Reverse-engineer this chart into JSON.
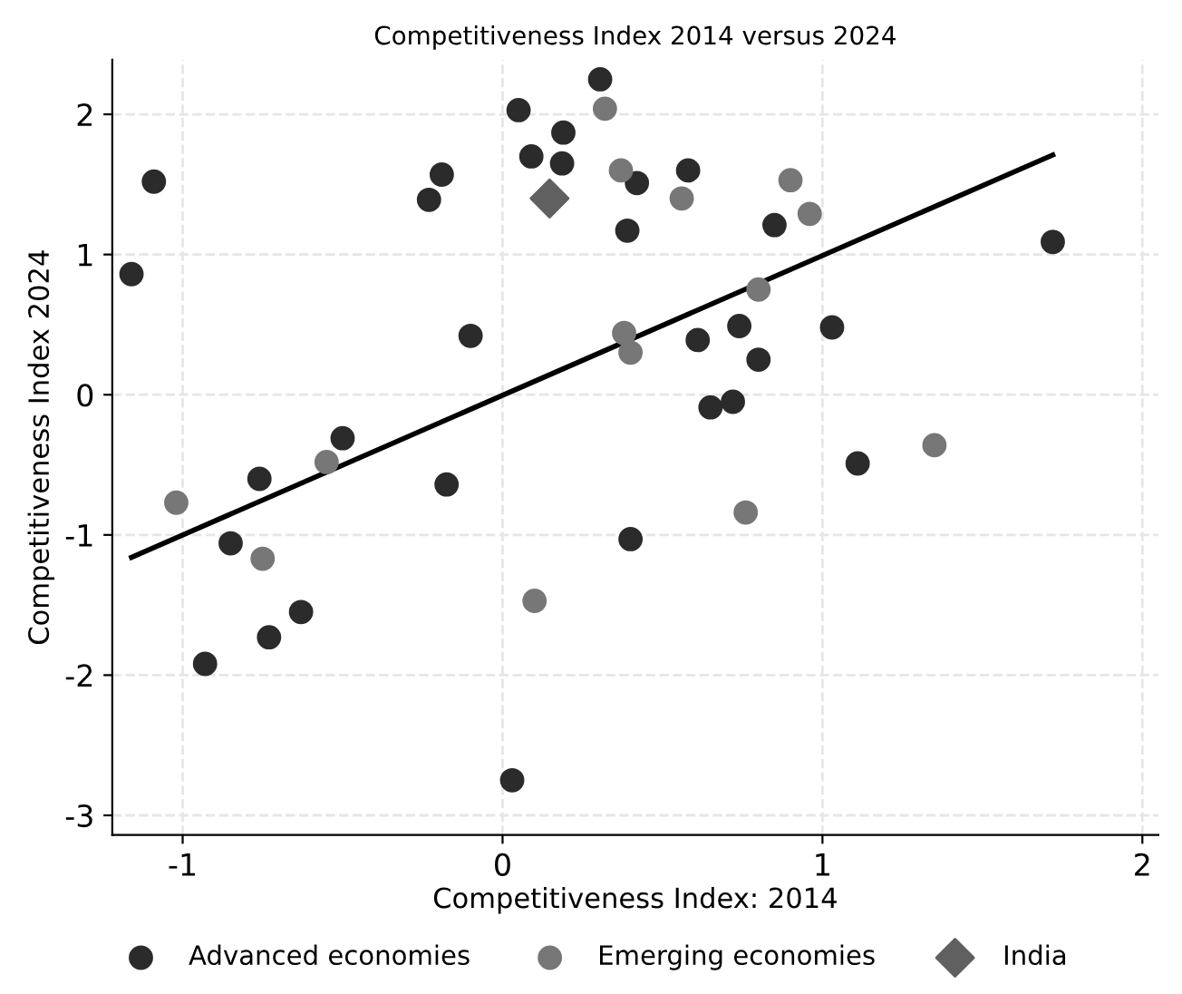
{
  "chart_data": {
    "type": "scatter",
    "title": "Competitiveness Index 2014 versus 2024",
    "xlabel": "Competitiveness Index: 2014",
    "ylabel": "Competitiveness Index 2024",
    "xlim": [
      -1.22,
      2.05
    ],
    "ylim": [
      -3.14,
      2.39
    ],
    "xticks": [
      -1,
      0,
      1,
      2
    ],
    "yticks": [
      -3,
      -2,
      -1,
      0,
      1,
      2
    ],
    "grid": true,
    "legend": "bottom",
    "series": [
      {
        "name": "Advanced economies",
        "color": "#2b2b2b",
        "marker": "circle",
        "x": [
          -1.16,
          -1.09,
          -0.23,
          -0.19,
          -0.1,
          0.05,
          0.09,
          0.305,
          0.19,
          0.186,
          0.42,
          0.58,
          0.39,
          0.85,
          1.72,
          0.61,
          0.74,
          1.03,
          0.8,
          0.65,
          0.72,
          0.4,
          1.11,
          -0.5,
          -0.76,
          -0.175,
          -0.85,
          -0.63,
          -0.73,
          -0.93,
          0.03
        ],
        "values": [
          0.86,
          1.52,
          1.39,
          1.57,
          0.42,
          2.03,
          1.7,
          2.25,
          1.87,
          1.65,
          1.51,
          1.6,
          1.17,
          1.21,
          1.09,
          0.39,
          0.49,
          0.48,
          0.25,
          -0.09,
          -0.05,
          -1.03,
          -0.49,
          -0.31,
          -0.6,
          -0.64,
          -1.06,
          -1.55,
          -1.73,
          -1.92,
          -2.75
        ]
      },
      {
        "name": "Emerging economies",
        "color": "#777777",
        "marker": "circle",
        "x": [
          0.32,
          0.37,
          0.56,
          0.9,
          0.96,
          0.8,
          0.38,
          0.4,
          1.35,
          0.76,
          -1.02,
          -0.55,
          -0.75,
          0.1
        ],
        "values": [
          2.04,
          1.6,
          1.4,
          1.53,
          1.29,
          0.75,
          0.44,
          0.3,
          -0.36,
          -0.84,
          -0.77,
          -0.48,
          -1.17,
          -1.47
        ]
      },
      {
        "name": "India",
        "color": "#606060",
        "marker": "diamond",
        "x": [
          0.147
        ],
        "values": [
          1.4
        ]
      },
      {
        "type": "line",
        "color": "#000000",
        "marker": "none",
        "line_style": "solid",
        "x": [
          -1.16,
          1.72
        ],
        "values": [
          -1.16,
          1.71
        ]
      }
    ]
  }
}
